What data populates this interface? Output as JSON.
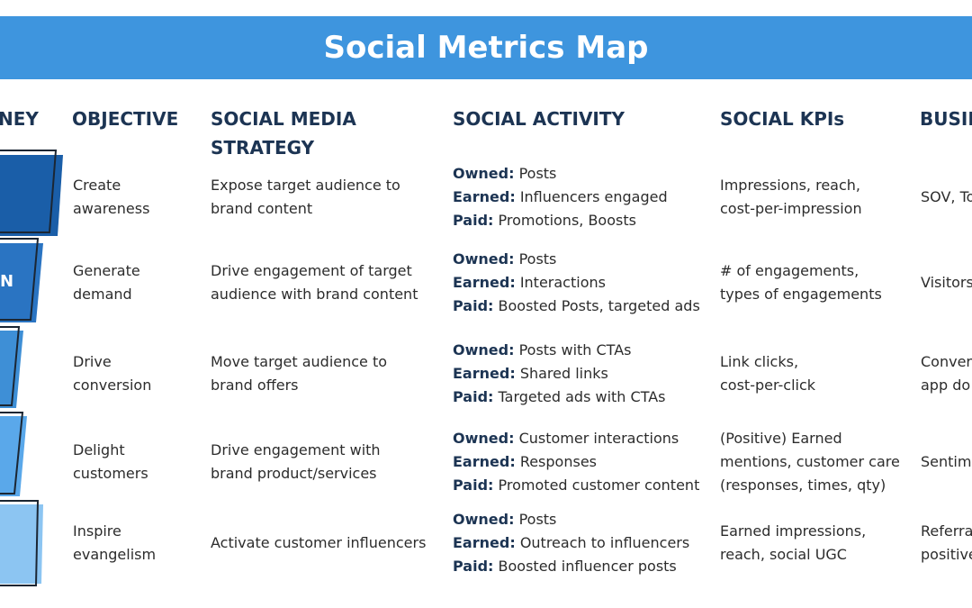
{
  "title": "Social Metrics Map",
  "headers": {
    "journey": "NEY",
    "objective": "OBJECTIVE",
    "strategy": [
      "SOCIAL MEDIA",
      "STRATEGY"
    ],
    "activity": "SOCIAL ACTIVITY",
    "kpis": "SOCIAL KPIs",
    "business": "BUSIN"
  },
  "funnel_label": "N",
  "rows": [
    {
      "objective": [
        "Create",
        "awareness"
      ],
      "strategy": [
        "Expose target audience to",
        "brand content"
      ],
      "activity": [
        {
          "label": "Owned:",
          "text": "Posts"
        },
        {
          "label": "Earned:",
          "text": "Influencers engaged"
        },
        {
          "label": "Paid:",
          "text": "Promotions, Boosts"
        }
      ],
      "kpis": [
        "Impressions, reach,",
        "cost-per-impression"
      ],
      "business": [
        "SOV, To"
      ]
    },
    {
      "objective": [
        "Generate",
        "demand"
      ],
      "strategy": [
        "Drive engagement of target",
        "audience with brand content"
      ],
      "activity": [
        {
          "label": "Owned:",
          "text": "Posts"
        },
        {
          "label": "Earned:",
          "text": "Interactions"
        },
        {
          "label": "Paid:",
          "text": "Boosted Posts, targeted ads"
        }
      ],
      "kpis": [
        "# of engagements,",
        "types of engagements"
      ],
      "business": [
        "Visitors"
      ]
    },
    {
      "objective": [
        "Drive",
        "conversion"
      ],
      "strategy": [
        "Move target audience to",
        "brand offers"
      ],
      "activity": [
        {
          "label": "Owned:",
          "text": "Posts with CTAs"
        },
        {
          "label": "Earned:",
          "text": "Shared links"
        },
        {
          "label": "Paid:",
          "text": "Targeted ads with CTAs"
        }
      ],
      "kpis": [
        "Link clicks,",
        "cost-per-click"
      ],
      "business": [
        "Conver",
        "app do"
      ]
    },
    {
      "objective": [
        "Delight",
        "customers"
      ],
      "strategy": [
        "Drive engagement with",
        "brand product/services"
      ],
      "activity": [
        {
          "label": "Owned:",
          "text": "Customer interactions"
        },
        {
          "label": "Earned:",
          "text": "Responses"
        },
        {
          "label": "Paid:",
          "text": "Promoted customer content"
        }
      ],
      "kpis": [
        "(Positive) Earned",
        "mentions, customer care",
        "(responses, times, qty)"
      ],
      "business": [
        "Sentim"
      ]
    },
    {
      "objective": [
        "Inspire",
        "evangelism"
      ],
      "strategy": [
        "Activate customer influencers"
      ],
      "activity": [
        {
          "label": "Owned:",
          "text": "Posts"
        },
        {
          "label": "Earned:",
          "text": "Outreach to influencers"
        },
        {
          "label": "Paid:",
          "text": "Boosted influencer posts"
        }
      ],
      "kpis": [
        "Earned impressions,",
        "reach, social UGC"
      ],
      "business": [
        "Referra",
        "positive"
      ]
    }
  ]
}
